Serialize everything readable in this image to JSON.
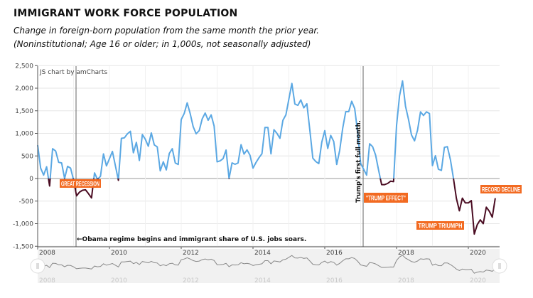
{
  "header": {
    "title": "IMMIGRANT WORK FORCE POPULATION",
    "subtitle_1": "Change in foreign-born population from the same month the prior year.",
    "subtitle_2": "(Noninstitutional; Age 16 or older; in 1,000s, not seasonally adjusted)"
  },
  "credit": "JS chart by amCharts",
  "colors": {
    "positive": "#5ba8e3",
    "negative": "#4a0c22",
    "label_bg": "#f26a21",
    "scroll_bg": "#f1f1f1"
  },
  "chart_data": {
    "type": "line",
    "title": "",
    "xlabel": "",
    "ylabel": "",
    "ylim": [
      -1500,
      2500
    ],
    "yticks": [
      "2,500",
      "2,000",
      "1,500",
      "1,000",
      "500",
      "0",
      "-500",
      "-1,000",
      "-1,500"
    ],
    "ytick_values": [
      2500,
      2000,
      1500,
      1000,
      500,
      0,
      -500,
      -1000,
      -1500
    ],
    "xticks": [
      "2008",
      "2010",
      "2012",
      "2014",
      "2016",
      "2018",
      "2020"
    ],
    "grid": true,
    "series": [
      {
        "year": 2008,
        "values": [
          740,
          230,
          75,
          260,
          -165,
          660,
          610,
          360,
          345,
          0,
          270,
          230
        ]
      },
      {
        "year": 2009,
        "values": [
          -30,
          -385,
          -300,
          -260,
          -250,
          -335,
          -430,
          125,
          -20,
          50,
          545,
          280
        ]
      },
      {
        "year": 2010,
        "values": [
          440,
          600,
          280,
          -40,
          890,
          900,
          990,
          1045,
          570,
          800,
          400,
          975
        ]
      },
      {
        "year": 2011,
        "values": [
          870,
          715,
          1010,
          745,
          700,
          170,
          370,
          190,
          555,
          660,
          345,
          310
        ]
      },
      {
        "year": 2012,
        "values": [
          1305,
          1440,
          1675,
          1440,
          1150,
          990,
          1060,
          1320,
          1450,
          1290,
          1410,
          1160
        ]
      },
      {
        "year": 2013,
        "values": [
          370,
          390,
          440,
          630,
          0,
          345,
          315,
          345,
          750,
          540,
          635,
          515
        ]
      },
      {
        "year": 2014,
        "values": [
          230,
          355,
          460,
          550,
          1130,
          1130,
          545,
          1080,
          1000,
          890,
          1290,
          1410
        ]
      },
      {
        "year": 2015,
        "values": [
          1760,
          2105,
          1650,
          1620,
          1740,
          1565,
          1655,
          1070,
          450,
          375,
          330,
          805
        ]
      },
      {
        "year": 2016,
        "values": [
          1060,
          665,
          955,
          820,
          310,
          625,
          1120,
          1480,
          1480,
          1710,
          1550,
          1020
        ]
      },
      {
        "year": 2017,
        "values": [
          335,
          205,
          75,
          770,
          705,
          520,
          180,
          -135,
          -135,
          -110,
          -60,
          -70
        ]
      },
      {
        "year": 2018,
        "values": [
          1175,
          1830,
          2160,
          1600,
          1310,
          965,
          835,
          1070,
          1475,
          1395,
          1475,
          1440
        ]
      },
      {
        "year": 2019,
        "values": [
          285,
          505,
          205,
          180,
          690,
          705,
          415,
          10,
          -440,
          -715,
          -435,
          -540
        ]
      },
      {
        "year": 2020,
        "values": [
          -540,
          -490,
          -1230,
          -1020,
          -915,
          -1000,
          -635,
          -725,
          -855,
          -435
        ]
      }
    ],
    "annotations": {
      "great_recession": "GREAT RECESSION",
      "trump_effect": "\"TRUMP EFFECT\"",
      "trump_triumph": "TRUMP TRIUMPH",
      "record_decline": "RECORD DECLINE",
      "obama": "←Obama regime begins and immigrant share of U.S. jobs soars.",
      "trump_first": "Trump's first full month."
    }
  }
}
